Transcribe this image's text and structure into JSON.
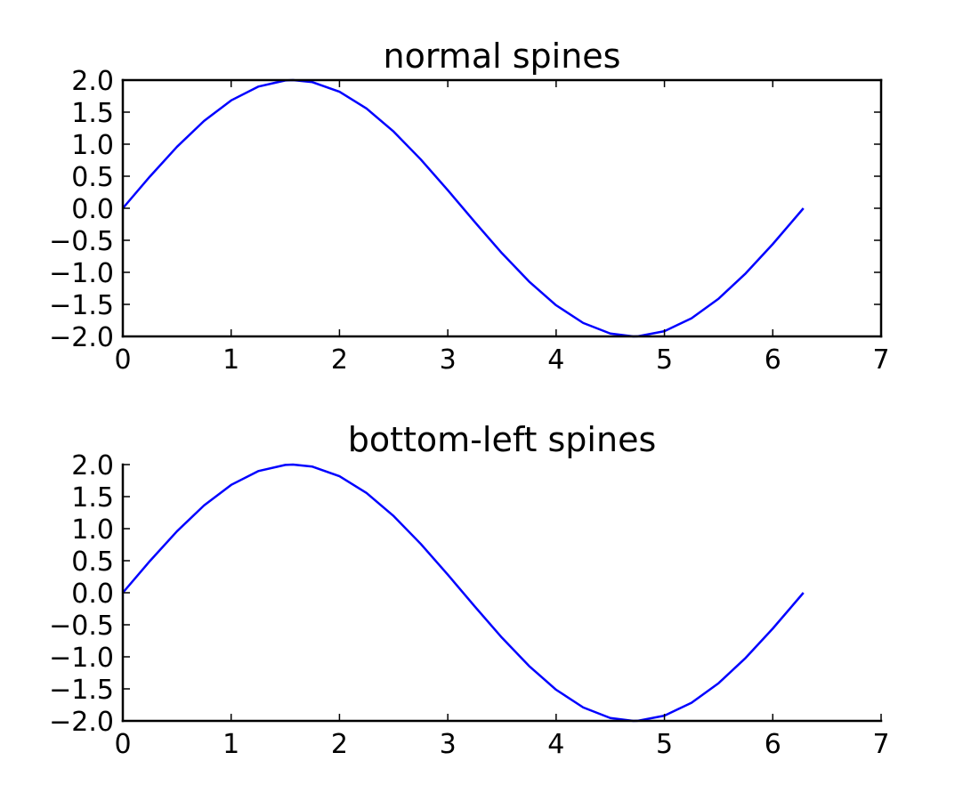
{
  "chart_data": [
    {
      "type": "line",
      "title": "normal spines",
      "xlabel": "",
      "ylabel": "",
      "xlim": [
        0,
        7
      ],
      "ylim": [
        -2.0,
        2.0
      ],
      "xticks": [
        "0",
        "1",
        "2",
        "3",
        "4",
        "5",
        "6",
        "7"
      ],
      "yticks": [
        "2.0",
        "1.5",
        "1.0",
        "0.5",
        "0.0",
        "−0.5",
        "−1.0",
        "−1.5",
        "−2.0"
      ],
      "spines": [
        "top",
        "right",
        "bottom",
        "left"
      ],
      "grid": false,
      "series": [
        {
          "color": "#0000ff",
          "x": [
            0,
            0.25,
            0.5,
            0.75,
            1.0,
            1.25,
            1.5,
            1.5708,
            1.75,
            2.0,
            2.25,
            2.5,
            2.75,
            3.0,
            3.25,
            3.5,
            3.75,
            4.0,
            4.25,
            4.5,
            4.7124,
            4.75,
            5.0,
            5.25,
            5.5,
            5.75,
            6.0,
            6.2832
          ],
          "y": [
            0.0,
            0.495,
            0.959,
            1.363,
            1.683,
            1.898,
            1.995,
            2.0,
            1.968,
            1.819,
            1.556,
            1.197,
            0.763,
            0.282,
            -0.217,
            -0.702,
            -1.143,
            -1.514,
            -1.79,
            -1.955,
            -2.0,
            -1.999,
            -1.918,
            -1.717,
            -1.411,
            -1.016,
            -0.559,
            0.0
          ]
        }
      ]
    },
    {
      "type": "line",
      "title": "bottom-left spines",
      "xlabel": "",
      "ylabel": "",
      "xlim": [
        0,
        7
      ],
      "ylim": [
        -2.0,
        2.0
      ],
      "xticks": [
        "0",
        "1",
        "2",
        "3",
        "4",
        "5",
        "6",
        "7"
      ],
      "yticks": [
        "2.0",
        "1.5",
        "1.0",
        "0.5",
        "0.0",
        "−0.5",
        "−1.0",
        "−1.5",
        "−2.0"
      ],
      "spines": [
        "bottom",
        "left"
      ],
      "grid": false,
      "series": [
        {
          "color": "#0000ff",
          "x": [
            0,
            0.25,
            0.5,
            0.75,
            1.0,
            1.25,
            1.5,
            1.5708,
            1.75,
            2.0,
            2.25,
            2.5,
            2.75,
            3.0,
            3.25,
            3.5,
            3.75,
            4.0,
            4.25,
            4.5,
            4.7124,
            4.75,
            5.0,
            5.25,
            5.5,
            5.75,
            6.0,
            6.2832
          ],
          "y": [
            0.0,
            0.495,
            0.959,
            1.363,
            1.683,
            1.898,
            1.995,
            2.0,
            1.968,
            1.819,
            1.556,
            1.197,
            0.763,
            0.282,
            -0.217,
            -0.702,
            -1.143,
            -1.514,
            -1.79,
            -1.955,
            -2.0,
            -1.999,
            -1.918,
            -1.717,
            -1.411,
            -1.016,
            -0.559,
            0.0
          ]
        }
      ]
    }
  ]
}
